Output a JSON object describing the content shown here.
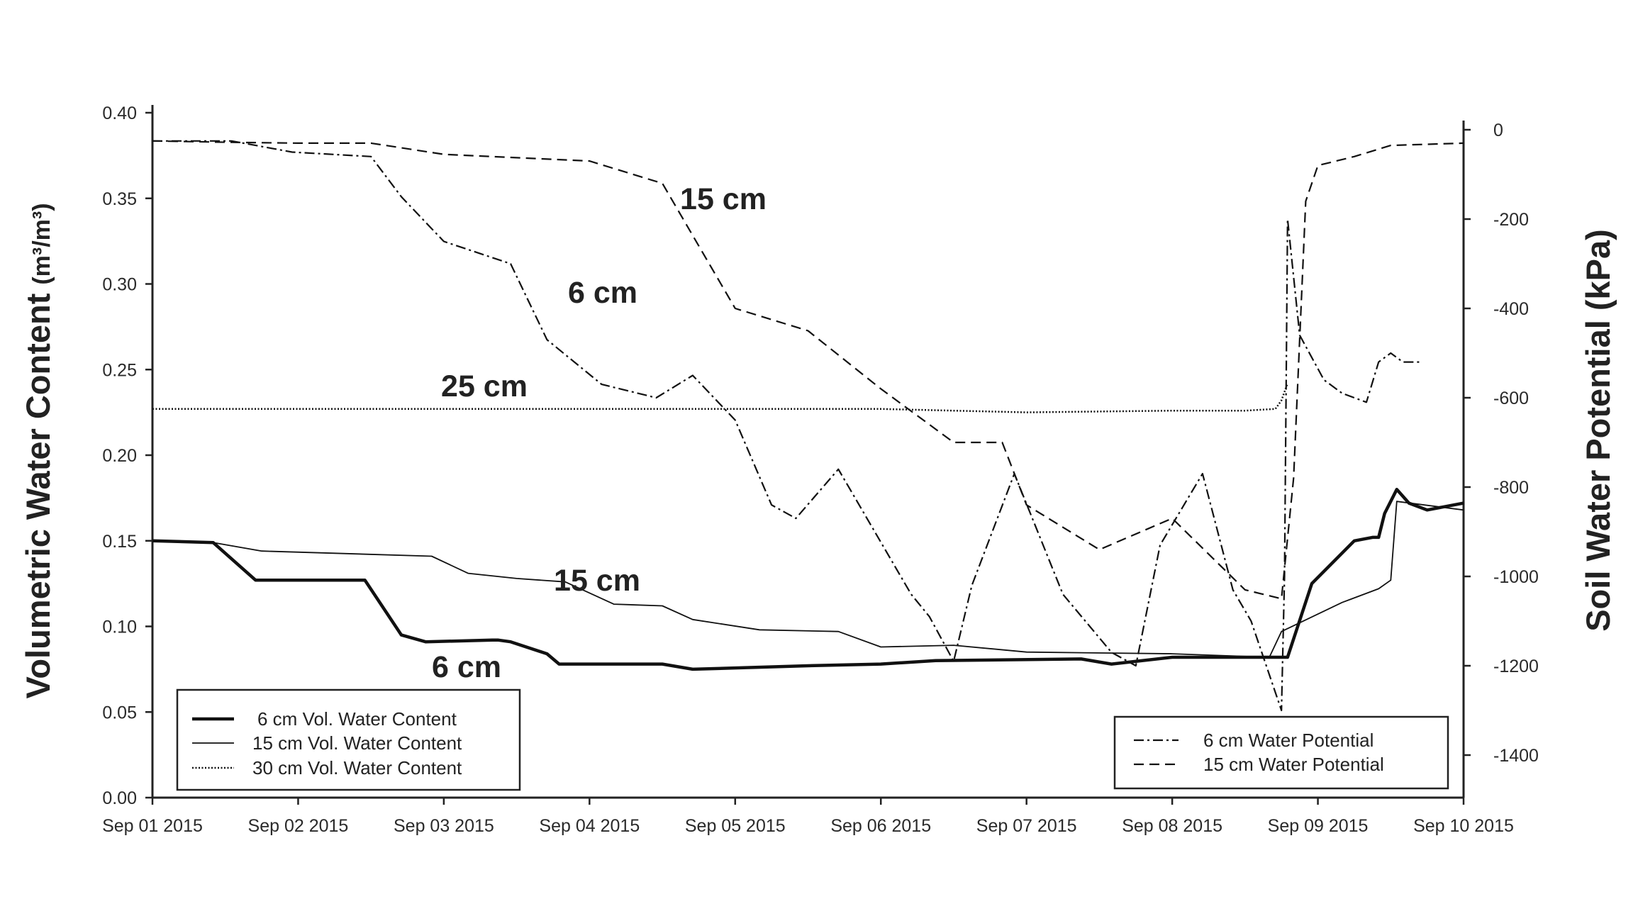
{
  "chart_data": {
    "type": "line",
    "ylabel": "Volumetric Water Content",
    "ylabel_unit": "(m³/m³)",
    "y2label": "Soil Water Potential (kPa)",
    "x_ticks": [
      "Sep 01 2015",
      "Sep 02 2015",
      "Sep 03 2015",
      "Sep 04 2015",
      "Sep 05 2015",
      "Sep 06 2015",
      "Sep 07 2015",
      "Sep 08 2015",
      "Sep 09 2015",
      "Sep 10 2015"
    ],
    "xlim": [
      "2015-09-01",
      "2015-09-10"
    ],
    "ylim": [
      0,
      0.4
    ],
    "y_ticks": [
      "0.00",
      "0.05",
      "0.10",
      "0.15",
      "0.20",
      "0.25",
      "0.30",
      "0.35",
      "0.40"
    ],
    "y2lim": [
      -1510,
      30
    ],
    "y2_ticks": [
      "0",
      "-200",
      "-400",
      "-600",
      "-800",
      "-1000",
      "-1200",
      "-1400"
    ],
    "grid": false,
    "legend_left": {
      "placement": "bottom-left",
      "entries": [
        "6 cm Vol. Water Content",
        "15 cm Vol. Water Content",
        "30 cm Vol. Water Content"
      ]
    },
    "legend_right": {
      "placement": "bottom-right",
      "entries": [
        "6 cm Water Potential",
        "15 cm Water Potential"
      ]
    },
    "annotations": [
      "15 cm",
      "6 cm",
      "25 cm",
      "15 cm",
      "6 cm"
    ],
    "series": [
      {
        "name": "6 cm Vol. Water Content",
        "axis": "left",
        "style": "thick",
        "x": [
          "2015-09-01 00:00",
          "2015-09-01 10:00",
          "2015-09-01 17:00",
          "2015-09-02 11:00",
          "2015-09-02 17:00",
          "2015-09-02 21:00",
          "2015-09-03 08:00",
          "2015-09-03 09:00",
          "2015-09-03 11:00",
          "2015-09-03 17:00",
          "2015-09-03 19:00",
          "2015-09-04 12:00",
          "2015-09-04 17:00",
          "2015-09-05 12:00",
          "2015-09-06 00:00",
          "2015-09-06 09:00",
          "2015-09-07 09:00",
          "2015-09-07 14:00",
          "2015-09-08 00:00",
          "2015-09-08 13:00",
          "2015-09-08 16:00",
          "2015-09-08 19:00",
          "2015-09-08 23:00",
          "2015-09-09 06:00",
          "2015-09-09 09:00",
          "2015-09-09 10:00",
          "2015-09-09 11:00",
          "2015-09-09 13:00",
          "2015-09-09 15:00",
          "2015-09-09 18:00",
          "2015-09-10 00:00"
        ],
        "values": [
          0.15,
          0.149,
          0.127,
          0.127,
          0.095,
          0.091,
          0.092,
          0.092,
          0.091,
          0.084,
          0.078,
          0.078,
          0.075,
          0.077,
          0.078,
          0.08,
          0.081,
          0.078,
          0.082,
          0.082,
          0.082,
          0.082,
          0.125,
          0.15,
          0.152,
          0.152,
          0.166,
          0.18,
          0.172,
          0.168,
          0.172
        ]
      },
      {
        "name": "15 cm Vol. Water Content",
        "axis": "left",
        "style": "thin",
        "x": [
          "2015-09-01 00:00",
          "2015-09-01 10:00",
          "2015-09-01 18:00",
          "2015-09-02 22:00",
          "2015-09-03 04:00",
          "2015-09-03 12:00",
          "2015-09-03 20:00",
          "2015-09-04 04:00",
          "2015-09-04 12:00",
          "2015-09-04 17:00",
          "2015-09-05 04:00",
          "2015-09-05 17:00",
          "2015-09-06 00:00",
          "2015-09-06 12:00",
          "2015-09-07 00:00",
          "2015-09-08 00:00",
          "2015-09-08 16:00",
          "2015-09-08 18:00",
          "2015-09-09 04:00",
          "2015-09-09 10:00",
          "2015-09-09 12:00",
          "2015-09-09 13:00",
          "2015-09-10 00:00"
        ],
        "values": [
          0.15,
          0.149,
          0.144,
          0.141,
          0.131,
          0.128,
          0.126,
          0.113,
          0.112,
          0.104,
          0.098,
          0.097,
          0.088,
          0.089,
          0.085,
          0.084,
          0.082,
          0.097,
          0.114,
          0.122,
          0.127,
          0.173,
          0.168
        ]
      },
      {
        "name": "30 cm Vol. Water Content",
        "axis": "left",
        "style": "dotted",
        "x": [
          "2015-09-01 00:00",
          "2015-09-03 00:00",
          "2015-09-05 00:00",
          "2015-09-06 00:00",
          "2015-09-07 00:00",
          "2015-09-08 00:00",
          "2015-09-08 12:00",
          "2015-09-08 17:00",
          "2015-09-08 18:00",
          "2015-09-08 19:00"
        ],
        "values": [
          0.227,
          0.227,
          0.227,
          0.227,
          0.225,
          0.226,
          0.226,
          0.227,
          0.232,
          0.242
        ]
      },
      {
        "name": "6 cm Water Potential",
        "axis": "right",
        "style": "dash-dot",
        "x": [
          "2015-09-01 00:00",
          "2015-09-01 13:00",
          "2015-09-01 23:00",
          "2015-09-02 12:00",
          "2015-09-02 17:00",
          "2015-09-03 00:00",
          "2015-09-03 11:00",
          "2015-09-03 17:00",
          "2015-09-04 02:00",
          "2015-09-04 11:00",
          "2015-09-04 17:00",
          "2015-09-05 00:00",
          "2015-09-05 06:00",
          "2015-09-05 10:00",
          "2015-09-05 17:00",
          "2015-09-06 05:00",
          "2015-09-06 08:00",
          "2015-09-06 12:00",
          "2015-09-06 15:00",
          "2015-09-06 22:00",
          "2015-09-07 06:00",
          "2015-09-07 14:00",
          "2015-09-07 18:00",
          "2015-09-07 22:00",
          "2015-09-08 05:00",
          "2015-09-08 10:00",
          "2015-09-08 13:00",
          "2015-09-08 18:00",
          "2015-09-08 18:30",
          "2015-09-08 19:00",
          "2015-09-08 21:00",
          "2015-09-09 01:00",
          "2015-09-09 04:00",
          "2015-09-09 08:00",
          "2015-09-09 10:00",
          "2015-09-09 12:00",
          "2015-09-09 14:00",
          "2015-09-09 17:00"
        ],
        "values": [
          -25,
          -25,
          -50,
          -60,
          -150,
          -250,
          -300,
          -470,
          -570,
          -600,
          -550,
          -650,
          -840,
          -870,
          -760,
          -1040,
          -1090,
          -1190,
          -1020,
          -770,
          -1040,
          -1170,
          -1200,
          -930,
          -770,
          -1030,
          -1100,
          -1300,
          -1000,
          -200,
          -460,
          -560,
          -590,
          -610,
          -520,
          -500,
          -520,
          -520
        ]
      },
      {
        "name": "15 cm Water Potential",
        "axis": "right",
        "style": "dashed",
        "x": [
          "2015-09-01 00:00",
          "2015-09-01 12:00",
          "2015-09-02 00:00",
          "2015-09-02 12:00",
          "2015-09-03 00:00",
          "2015-09-04 00:00",
          "2015-09-04 12:00",
          "2015-09-05 00:00",
          "2015-09-05 12:00",
          "2015-09-06 00:00",
          "2015-09-06 12:00",
          "2015-09-06 20:00",
          "2015-09-07 00:00",
          "2015-09-07 12:00",
          "2015-09-08 00:00",
          "2015-09-08 12:00",
          "2015-09-08 18:00",
          "2015-09-08 20:00",
          "2015-09-08 22:00",
          "2015-09-09 00:00",
          "2015-09-09 06:00",
          "2015-09-09 12:00",
          "2015-09-10 00:00"
        ],
        "values": [
          -25,
          -28,
          -30,
          -30,
          -55,
          -70,
          -120,
          -400,
          -450,
          -580,
          -700,
          -700,
          -840,
          -940,
          -870,
          -1030,
          -1050,
          -780,
          -160,
          -80,
          -60,
          -35,
          -30
        ]
      }
    ]
  }
}
